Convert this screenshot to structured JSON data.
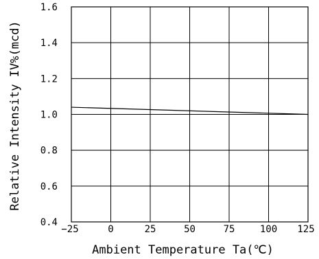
{
  "chart_data": {
    "type": "line",
    "title": "",
    "xlabel": "Ambient Temperature Ta(℃)",
    "ylabel": "Relative Intensity IV%(mcd)",
    "xlim": [
      -25,
      125
    ],
    "ylim": [
      0.4,
      1.6
    ],
    "x_ticks": [
      -25,
      0,
      25,
      50,
      75,
      100,
      125
    ],
    "x_tick_labels": [
      "−25",
      "0",
      "25",
      "50",
      "75",
      "100",
      "125"
    ],
    "y_ticks": [
      0.4,
      0.6,
      0.8,
      1.0,
      1.2,
      1.4,
      1.6
    ],
    "y_tick_labels": [
      "0.4",
      "0.6",
      "0.8",
      "1.0",
      "1.2",
      "1.4",
      "1.6"
    ],
    "grid": true,
    "series": [
      {
        "x": [
          -25,
          125
        ],
        "y": [
          1.04,
          1.0
        ]
      }
    ],
    "colors": {
      "line": "#000000",
      "grid": "#000000",
      "background": "#ffffff"
    }
  }
}
